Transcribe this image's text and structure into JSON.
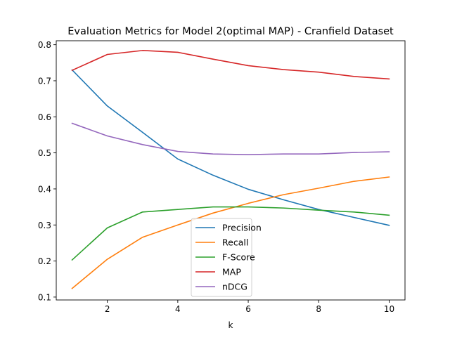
{
  "chart_data": {
    "type": "line",
    "title": "Evaluation Metrics for Model 2(optimal MAP) - Cranfield Dataset",
    "xlabel": "k",
    "ylabel": "",
    "x": [
      1,
      2,
      3,
      4,
      5,
      6,
      7,
      8,
      9,
      10
    ],
    "xlim": [
      0.55,
      10.45
    ],
    "ylim": [
      0.092,
      0.811
    ],
    "xticks": [
      2,
      4,
      6,
      8,
      10
    ],
    "xtick_labels": [
      "2",
      "4",
      "6",
      "8",
      "10"
    ],
    "yticks": [
      0.1,
      0.2,
      0.3,
      0.4,
      0.5,
      0.6,
      0.7,
      0.8
    ],
    "ytick_labels": [
      "0.1",
      "0.2",
      "0.3",
      "0.4",
      "0.5",
      "0.6",
      "0.7",
      "0.8"
    ],
    "grid": false,
    "legend_position": "lower-center",
    "series": [
      {
        "name": "Precision",
        "color": "#1f77b4",
        "values": [
          0.73,
          0.63,
          0.557,
          0.483,
          0.438,
          0.399,
          0.37,
          0.343,
          0.321,
          0.299
        ]
      },
      {
        "name": "Recall",
        "color": "#ff7f0e",
        "values": [
          0.124,
          0.205,
          0.266,
          0.3,
          0.333,
          0.36,
          0.384,
          0.402,
          0.421,
          0.433
        ]
      },
      {
        "name": "F-Score",
        "color": "#2ca02c",
        "values": [
          0.203,
          0.292,
          0.336,
          0.343,
          0.35,
          0.35,
          0.347,
          0.341,
          0.336,
          0.327
        ]
      },
      {
        "name": "MAP",
        "color": "#d62728",
        "values": [
          0.729,
          0.773,
          0.784,
          0.779,
          0.76,
          0.742,
          0.731,
          0.724,
          0.712,
          0.705
        ]
      },
      {
        "name": "nDCG",
        "color": "#9467bd",
        "values": [
          0.582,
          0.547,
          0.523,
          0.504,
          0.497,
          0.495,
          0.497,
          0.497,
          0.501,
          0.503
        ]
      }
    ]
  }
}
